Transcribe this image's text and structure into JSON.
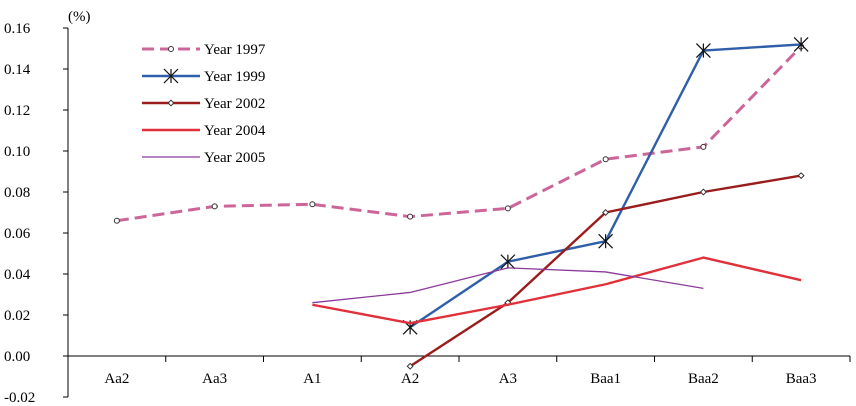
{
  "chart_data": {
    "type": "line",
    "unit_label": "(%)",
    "categories": [
      "Aa2",
      "Aa3",
      "A1",
      "A2",
      "A3",
      "Baa1",
      "Baa2",
      "Baa3"
    ],
    "ylim": [
      -0.02,
      0.16
    ],
    "yticks": [
      "0.16",
      "0.14",
      "0.12",
      "0.10",
      "0.08",
      "0.06",
      "0.04",
      "0.02",
      "0.00",
      "-0.02"
    ],
    "ytick_values": [
      0.16,
      0.14,
      0.12,
      0.1,
      0.08,
      0.06,
      0.04,
      0.02,
      0.0,
      -0.02
    ],
    "grid": false,
    "legend": "top-left",
    "series": [
      {
        "name": "Year 1997",
        "color": "#cc6699",
        "style": "dashed",
        "marker": "small-circle",
        "values": [
          0.066,
          0.073,
          0.074,
          0.068,
          0.072,
          0.096,
          0.102,
          0.151
        ]
      },
      {
        "name": "Year 1999",
        "color": "#2e5fa8",
        "style": "solid",
        "marker": "asterisk",
        "values": [
          null,
          null,
          null,
          0.014,
          0.046,
          0.056,
          0.149,
          0.152
        ]
      },
      {
        "name": "Year 2002",
        "color": "#9b1c1c",
        "style": "solid",
        "marker": "small-diamond",
        "values": [
          null,
          null,
          null,
          -0.005,
          0.026,
          0.07,
          0.08,
          0.088
        ]
      },
      {
        "name": "Year 2004",
        "color": "#e0303a",
        "style": "solid",
        "marker": "none",
        "values": [
          null,
          null,
          0.025,
          0.016,
          0.025,
          0.035,
          0.048,
          0.037
        ]
      },
      {
        "name": "Year 2005",
        "color": "#8b3a9a",
        "style": "thin",
        "marker": "none",
        "values": [
          null,
          null,
          0.026,
          0.031,
          0.043,
          0.041,
          0.033,
          null
        ]
      }
    ]
  }
}
